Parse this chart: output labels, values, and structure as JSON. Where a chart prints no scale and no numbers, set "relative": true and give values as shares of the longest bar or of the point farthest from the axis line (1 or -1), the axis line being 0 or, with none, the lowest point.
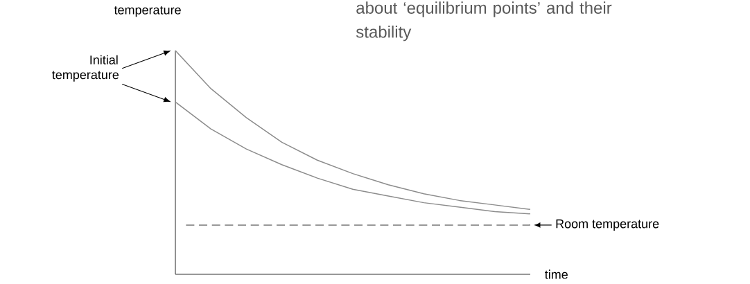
{
  "chart_data": {
    "type": "line",
    "relative": true,
    "ylabel": "temperature",
    "xlabel": "time",
    "categories": [
      null,
      null,
      null,
      null,
      null,
      null,
      null,
      null,
      null,
      null,
      null
    ],
    "series": [
      {
        "color": "#8c8c8c",
        "values": [
          1,
          0.83,
          0.7,
          0.59,
          0.51,
          0.45,
          0.4,
          0.36,
          0.33,
          0.31,
          0.29
        ]
      },
      {
        "color": "#8c8c8c",
        "values": [
          0.77,
          0.65,
          0.56,
          0.49,
          0.43,
          0.38,
          0.35,
          0.32,
          0.3,
          0.28,
          0.27
        ]
      }
    ],
    "ref_lines": [
      {
        "axis": "y",
        "value": 0.22,
        "label": "Room temperature",
        "color": "#333333",
        "line_style": "dashed"
      }
    ],
    "annotations": [
      "Initial temperature",
      "about ‘equilibrium points’ and their stability"
    ],
    "marker": "none",
    "line_style": "solid"
  }
}
